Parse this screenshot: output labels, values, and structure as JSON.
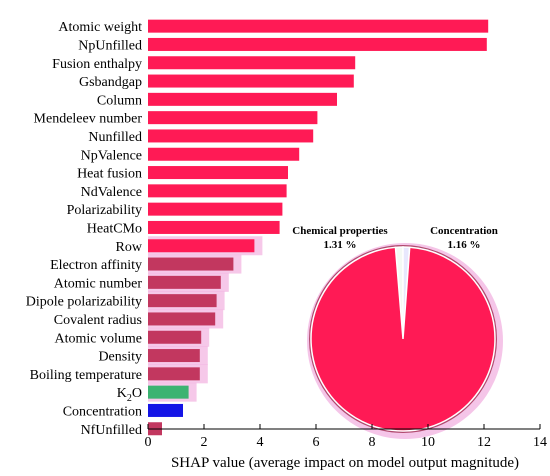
{
  "chart_data": [
    {
      "type": "bar",
      "orientation": "horizontal",
      "xlabel": "SHAP value (average impact on model output magnitude)",
      "xlim": [
        0,
        14
      ],
      "xticks": [
        0,
        2,
        4,
        6,
        8,
        10,
        12,
        14
      ],
      "grid": false,
      "categories": [
        "Atomic weight",
        "NpUnfilled",
        "Fusion enthalpy",
        "Gsbandgap",
        "Column",
        "Mendeleev number",
        "Nunfilled",
        "NpValence",
        "Heat fusion",
        "NdValence",
        "Polarizability",
        "HeatCMo",
        "Row",
        "Electron affinity",
        "Atomic number",
        "Dipole polarizability",
        "Covalent radius",
        "Atomic volume",
        "Density",
        "Boiling temperature",
        "K2O",
        "Concentration",
        "NfUnfilled"
      ],
      "values": [
        12.15,
        12.1,
        7.4,
        7.35,
        6.75,
        6.05,
        5.9,
        5.4,
        5.0,
        4.95,
        4.8,
        4.7,
        3.8,
        3.05,
        2.6,
        2.45,
        2.4,
        1.9,
        1.85,
        1.85,
        1.45,
        1.25,
        0.5
      ],
      "groups": [
        "chemical",
        "chemical",
        "chemical",
        "chemical",
        "chemical",
        "chemical",
        "chemical",
        "chemical",
        "chemical",
        "chemical",
        "chemical",
        "chemical",
        "chemical",
        "chemical",
        "chemical",
        "chemical",
        "chemical",
        "chemical",
        "chemical",
        "chemical",
        "k2o",
        "concentration",
        "chemical"
      ],
      "colors": {
        "chemical": "#ff1a55",
        "chemical_fade": "#c2375f",
        "k2o": "#3cb371",
        "concentration": "#1414e6",
        "halo": "#f3b6e2"
      }
    },
    {
      "type": "pie",
      "slices": [
        {
          "label": "Chemical properties",
          "value": 1.31,
          "value_label": "1.31 %",
          "color": "#8fbc8f"
        },
        {
          "label": "Concentration",
          "value": 1.16,
          "value_label": "1.16 %",
          "color": "#1414e6"
        },
        {
          "label": "",
          "value": 97.53,
          "color": "#ff1a55"
        }
      ],
      "slice_gap_color": "#ffffff",
      "shadow_color": "#b04a6e",
      "halo_color": "#f3b6e2"
    }
  ]
}
